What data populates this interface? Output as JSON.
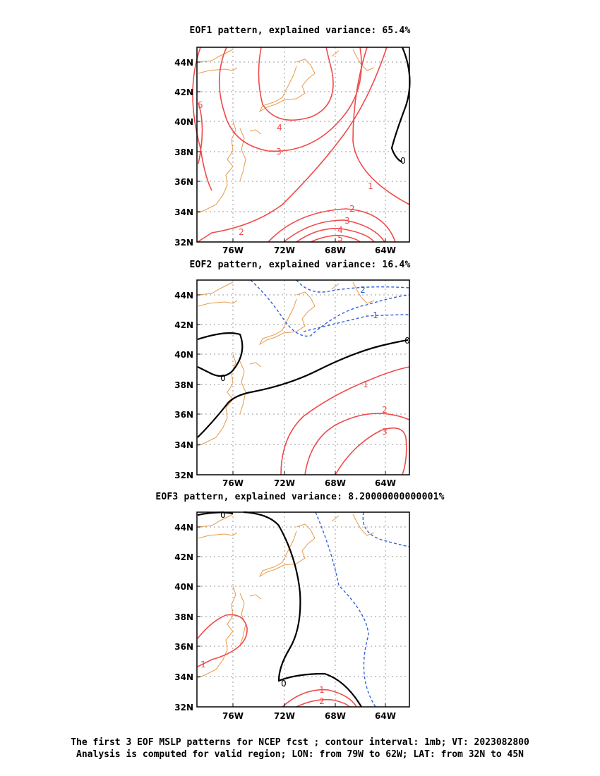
{
  "panels": [
    {
      "title": "EOF1 pattern, explained variance: 65.4%"
    },
    {
      "title": "EOF2 pattern, explained variance: 16.4%"
    },
    {
      "title": "EOF3 pattern, explained variance: 8.20000000000001%"
    }
  ],
  "axes": {
    "x_ticks": [
      "76W",
      "72W",
      "68W",
      "64W"
    ],
    "y_ticks": [
      "44N",
      "42N",
      "40N",
      "38N",
      "36N",
      "34N",
      "32N"
    ]
  },
  "contour_labels": {
    "eof1": [
      "5",
      "4",
      "3",
      "1",
      "2",
      "3",
      "4",
      "5",
      "2",
      "0"
    ],
    "eof2": [
      "2",
      "1",
      "0",
      "0",
      "1",
      "2",
      "3"
    ],
    "eof3": [
      "0",
      "0",
      "1",
      "1",
      "2"
    ]
  },
  "colors": {
    "positive": "#f04a4a",
    "negative": "#2f5fe0",
    "zero": "#000000",
    "coast": "#e89a4a",
    "grid": "#9a9a9a"
  },
  "caption": {
    "line1": "The first 3 EOF MSLP patterns for NCEP fcst ; contour interval: 1mb; VT: 2023082800",
    "line2": "Analysis is computed for valid region; LON: from 79W to 62W; LAT: from 32N to 45N"
  }
}
